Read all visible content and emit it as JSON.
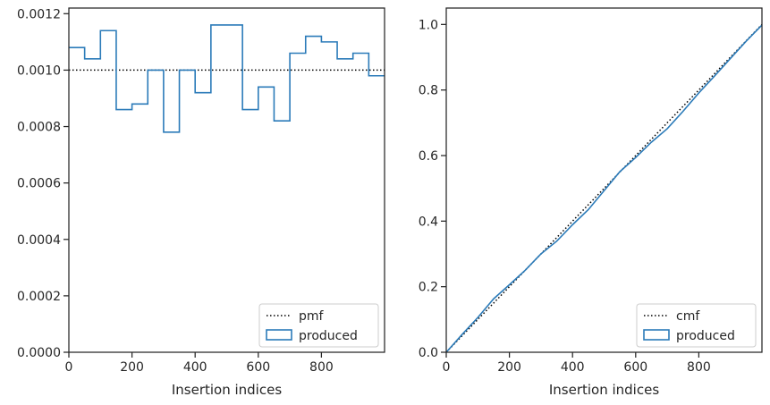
{
  "chart_data": [
    {
      "type": "step",
      "xlabel": "Insertion indices",
      "ylabel": "",
      "xlim": [
        0,
        1000
      ],
      "ylim": [
        0,
        0.00122
      ],
      "xticks": [
        0,
        200,
        400,
        600,
        800
      ],
      "xtick_labels": [
        "0",
        "200",
        "400",
        "600",
        "800"
      ],
      "yticks": [
        0,
        0.0002,
        0.0004,
        0.0006,
        0.0008,
        0.001,
        0.0012
      ],
      "ytick_labels": [
        "0.0000",
        "0.0002",
        "0.0004",
        "0.0006",
        "0.0008",
        "0.0010",
        "0.0012"
      ],
      "grid": false,
      "legend_position": "lower-right",
      "series": [
        {
          "name": "pmf",
          "kind": "line",
          "style": "dotted",
          "color": "#000000",
          "x": [
            0,
            1000
          ],
          "y": [
            0.001,
            0.001
          ]
        },
        {
          "name": "produced",
          "kind": "histogram-step",
          "color": "#2b7bb9",
          "bin_edges": [
            0,
            50,
            100,
            150,
            200,
            250,
            300,
            350,
            400,
            450,
            500,
            550,
            600,
            650,
            700,
            750,
            800,
            850,
            900,
            950,
            1000
          ],
          "values": [
            0.00108,
            0.00104,
            0.00114,
            0.00086,
            0.00088,
            0.001,
            0.00078,
            0.001,
            0.00092,
            0.00116,
            0.00116,
            0.00086,
            0.00094,
            0.00082,
            0.00106,
            0.00112,
            0.0011,
            0.00104,
            0.00106,
            0.00098
          ]
        }
      ]
    },
    {
      "type": "step",
      "xlabel": "Insertion indices",
      "ylabel": "",
      "xlim": [
        0,
        1000
      ],
      "ylim": [
        0,
        1.05
      ],
      "xticks": [
        0,
        200,
        400,
        600,
        800
      ],
      "xtick_labels": [
        "0",
        "200",
        "400",
        "600",
        "800"
      ],
      "yticks": [
        0,
        0.2,
        0.4,
        0.6,
        0.8,
        1.0
      ],
      "ytick_labels": [
        "0.0",
        "0.2",
        "0.4",
        "0.6",
        "0.8",
        "1.0"
      ],
      "grid": false,
      "legend_position": "lower-right",
      "series": [
        {
          "name": "cmf",
          "kind": "line",
          "style": "dotted",
          "color": "#000000",
          "x": [
            0,
            1000
          ],
          "y": [
            0,
            1
          ]
        },
        {
          "name": "produced",
          "kind": "cumulative-step",
          "color": "#2b7bb9",
          "x": [
            0,
            50,
            100,
            150,
            200,
            250,
            300,
            350,
            400,
            450,
            500,
            550,
            600,
            650,
            700,
            750,
            800,
            850,
            900,
            950,
            1000
          ],
          "y": [
            0,
            0.054,
            0.106,
            0.163,
            0.206,
            0.25,
            0.3,
            0.339,
            0.389,
            0.435,
            0.493,
            0.551,
            0.594,
            0.641,
            0.682,
            0.735,
            0.791,
            0.843,
            0.896,
            0.949,
            0.998
          ]
        }
      ]
    }
  ]
}
